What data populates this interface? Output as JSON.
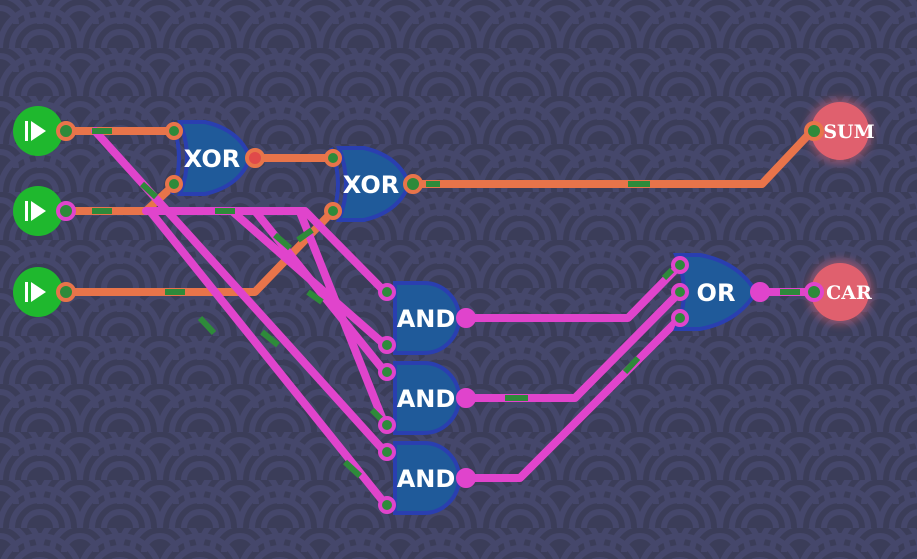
{
  "circuit": {
    "title": "",
    "colors": {
      "background": "#3b3d59",
      "pattern": "#44466a",
      "wire_on": "#e8744a",
      "wire_off": "#e044cc",
      "signal_dash": "#2e8a3a",
      "input_on": "#1fb82e",
      "output_lamp": "#e0606e",
      "gate_fill": "#1f5a9a",
      "gate_stroke": "#2a3fb0"
    },
    "inputs": [
      {
        "id": "input-a",
        "icon": "play-icon",
        "state": "on"
      },
      {
        "id": "input-b",
        "icon": "play-icon",
        "state": "on"
      },
      {
        "id": "input-c",
        "icon": "play-icon",
        "state": "on"
      }
    ],
    "gates": [
      {
        "id": "xor-1",
        "label": "XOR"
      },
      {
        "id": "xor-2",
        "label": "XOR"
      },
      {
        "id": "and-1",
        "label": "AND"
      },
      {
        "id": "and-2",
        "label": "AND"
      },
      {
        "id": "and-3",
        "label": "AND"
      },
      {
        "id": "or-1",
        "label": "OR"
      }
    ],
    "outputs": [
      {
        "id": "output-sum",
        "label": "SUM"
      },
      {
        "id": "output-car",
        "label": "CAR"
      }
    ]
  }
}
